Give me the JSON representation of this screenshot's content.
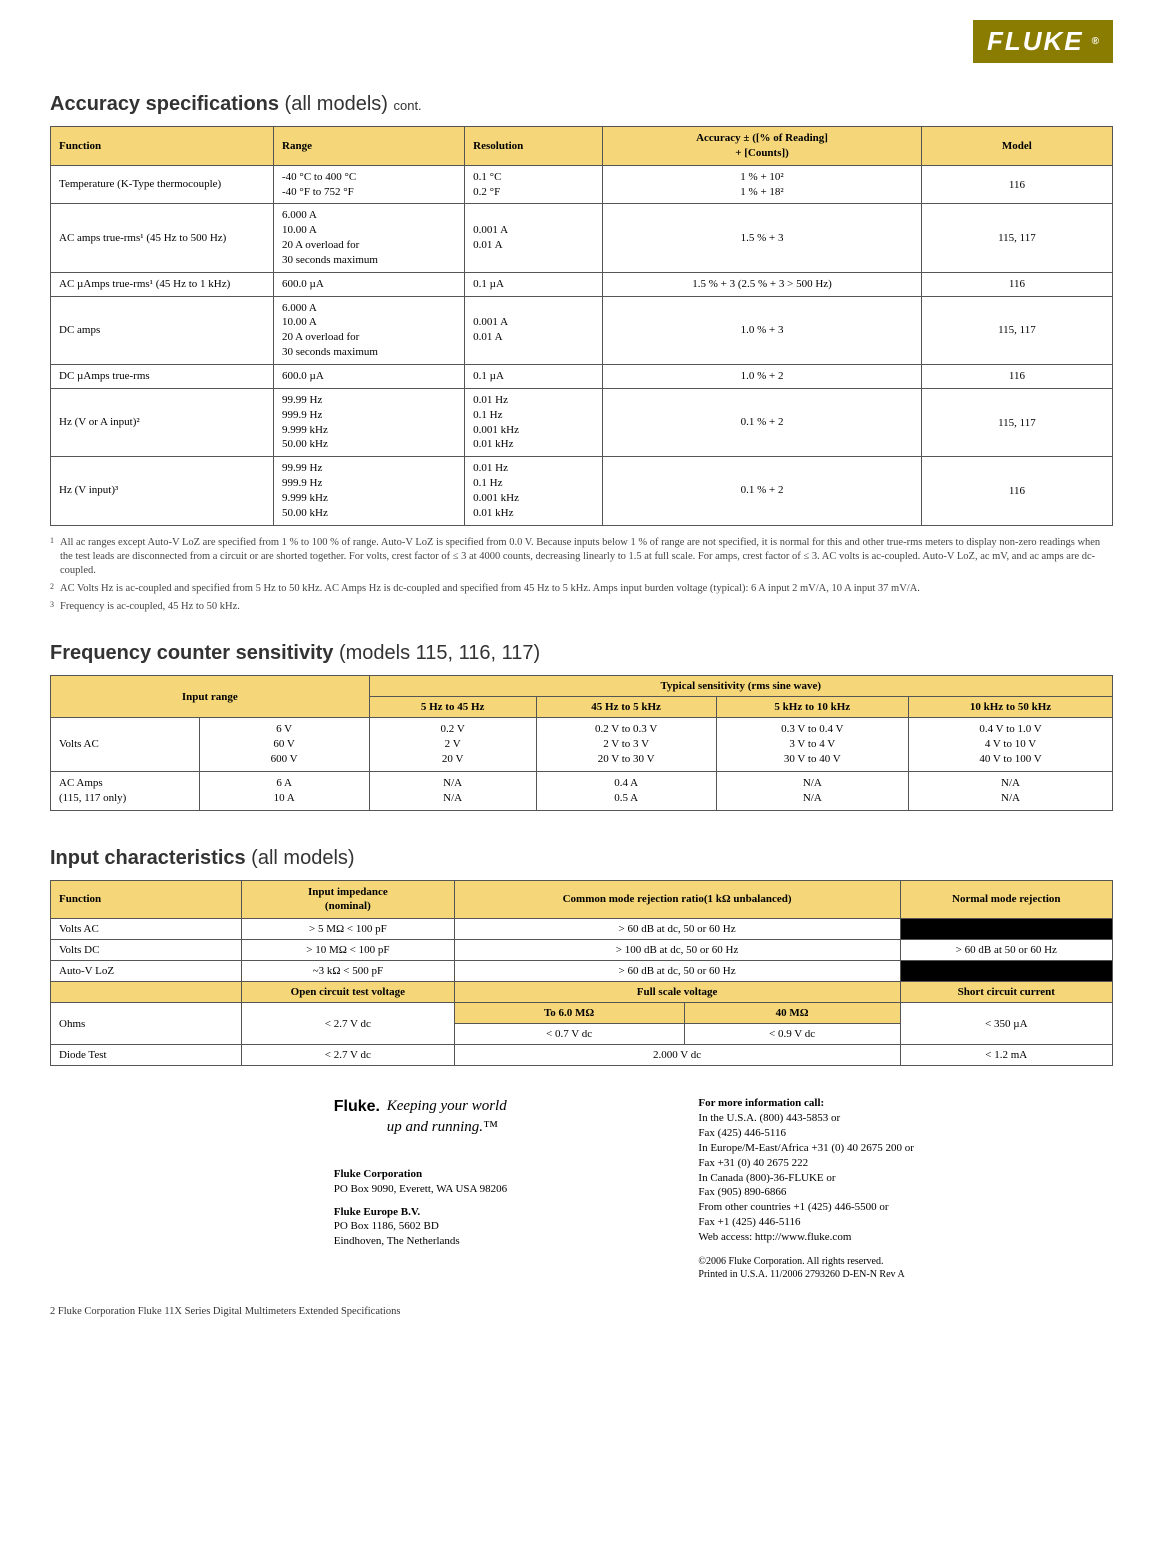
{
  "brand": {
    "name": "FLUKE",
    "reg": "®",
    "badge_bg": "#8a7c00"
  },
  "colors": {
    "header_bg": "#f5d77a",
    "border": "#555555",
    "text": "#000000"
  },
  "section1": {
    "title_strong": "Accuracy specifications",
    "title_thin": " (all models)",
    "title_cont": "cont.",
    "headers": [
      "Function",
      "Range",
      "Resolution",
      "Accuracy ± ([% of Reading]\n+ [Counts])",
      "Model"
    ],
    "rows": [
      {
        "func": "Temperature (K-Type thermocouple)",
        "range": "-40 °C to 400 °C\n-40 °F to 752 °F",
        "res": "0.1 °C\n0.2 °F",
        "acc": "1 % + 10²\n1 % + 18²",
        "model": "116"
      },
      {
        "func": "AC amps true-rms¹ (45 Hz to 500 Hz)",
        "range": "6.000 A\n10.00 A\n20 A overload for\n30 seconds maximum",
        "res": "0.001 A\n0.01 A",
        "acc": "1.5 % + 3",
        "model": "115, 117"
      },
      {
        "func": "AC µAmps true-rms¹ (45 Hz to 1 kHz)",
        "range": "600.0 µA",
        "res": "0.1 µA",
        "acc": "1.5 % + 3 (2.5 % + 3 > 500 Hz)",
        "model": "116"
      },
      {
        "func": "DC amps",
        "range": "6.000 A\n10.00 A\n20 A overload for\n30 seconds maximum",
        "res": "0.001 A\n0.01 A",
        "acc": "1.0 % + 3",
        "model": "115, 117"
      },
      {
        "func": "DC µAmps true-rms",
        "range": "600.0 µA",
        "res": "0.1 µA",
        "acc": "1.0 % + 2",
        "model": "116"
      },
      {
        "func": "Hz (V or A input)²",
        "range": "99.99 Hz\n999.9 Hz\n9.999 kHz\n50.00 kHz",
        "res": "0.01 Hz\n0.1 Hz\n0.001 kHz\n0.01 kHz",
        "acc": "0.1 % + 2",
        "model": "115, 117"
      },
      {
        "func": "Hz (V input)³",
        "range": "99.99 Hz\n999.9 Hz\n9.999 kHz\n50.00 kHz",
        "res": "0.01 Hz\n0.1 Hz\n0.001 kHz\n0.01 kHz",
        "acc": "0.1 % + 2",
        "model": "116"
      }
    ]
  },
  "footnotes": {
    "n1": "All ac ranges except Auto-V LoZ are specified from 1 % to 100 % of range. Auto-V LoZ is specified from 0.0 V. Because inputs below 1 % of range are not specified, it is normal for this and other true-rms meters to display non-zero readings when the test leads are disconnected from a circuit or are shorted together. For volts, crest factor of ≤ 3 at 4000 counts, decreasing linearly to 1.5 at full scale. For amps, crest factor of ≤ 3. AC volts is ac-coupled. Auto-V LoZ, ac mV, and ac amps are dc-coupled.",
    "n2": "AC Volts Hz is ac-coupled and specified from 5 Hz to 50 kHz. AC Amps Hz is dc-coupled and specified from 45 Hz to 5 kHz. Amps input burden voltage (typical): 6 A input 2 mV/A, 10 A input 37 mV/A.",
    "n3": "Frequency is ac-coupled, 45 Hz to 50 kHz."
  },
  "section2": {
    "title_strong": "Frequency counter sensitivity",
    "title_thin": " (models 115, 116, 117)",
    "row1_input": "Input range",
    "row1_typ": "Typical sensitivity (rms sine wave)",
    "cols": [
      "5 Hz to 45 Hz",
      "45 Hz to 5 kHz",
      "5 kHz to 10 kHz",
      "10 kHz to 50 kHz"
    ],
    "rows": [
      {
        "f": "Volts AC",
        "r": "6 V\n60 V\n600 V",
        "c": [
          "0.2 V\n2 V\n20 V",
          "0.2 V to 0.3 V\n2 V to 3 V\n20 V to 30 V",
          "0.3 V to 0.4 V\n3 V to 4 V\n30 V to 40 V",
          "0.4 V to 1.0 V\n4 V to 10 V\n40 V to 100 V"
        ]
      },
      {
        "f": "AC Amps\n(115, 117 only)",
        "r": "6 A\n10 A",
        "c": [
          "N/A\nN/A",
          "0.4 A\n0.5 A",
          "N/A\nN/A",
          "N/A\nN/A"
        ]
      }
    ]
  },
  "section3": {
    "title_strong": "Input characteristics",
    "title_thin": " (all models)",
    "h": {
      "func": "Function",
      "imp": "Input impedance\n(nominal)",
      "cmrr": "Common mode rejection ratio(1 kΩ unbalanced)",
      "nmr": "Normal mode rejection"
    },
    "r1": {
      "f": "Volts AC",
      "imp": "> 5 MΩ < 100 pF",
      "cmrr": "> 60 dB at dc, 50 or 60 Hz",
      "nmr": "black"
    },
    "r2": {
      "f": "Volts DC",
      "imp": "> 10 MΩ < 100 pF",
      "cmrr": "> 100 dB at dc, 50 or 60 Hz",
      "nmr": "> 60 dB at 50 or 60 Hz"
    },
    "r3": {
      "f": "Auto-V LoZ",
      "imp": "~3 kΩ < 500 pF",
      "cmrr": "> 60 dB at dc, 50 or 60 Hz",
      "nmr": "black"
    },
    "h2": {
      "ocv": "Open circuit test voltage",
      "fsv": "Full scale voltage",
      "scc": "Short circuit current"
    },
    "ohms": {
      "f": "Ohms",
      "ocv": "< 2.7 V dc",
      "a": "To 6.0 MΩ",
      "b": "40 MΩ",
      "c": "< 0.7 V dc",
      "d": "< 0.9 V dc",
      "scc": "< 350 µA"
    },
    "diode": {
      "f": "Diode Test",
      "ocv": "< 2.7 V dc",
      "fsv": "2.000 V dc",
      "scc": "< 1.2 mA"
    }
  },
  "footer": {
    "brand": "Fluke.",
    "tagline": "Keeping your world\nup and running.™",
    "corp_name": "Fluke Corporation",
    "corp_addr": "PO Box 9090, Everett, WA USA 98206",
    "eu_name": "Fluke Europe B.V.",
    "eu_addr": "PO Box 1186, 5602 BD\nEindhoven, The Netherlands",
    "info_head": "For more information call:",
    "info_body": "In the U.S.A. (800) 443-5853 or\nFax (425) 446-5116\nIn Europe/M-East/Africa +31 (0) 40 2675 200 or\nFax +31 (0) 40 2675 222\nIn Canada (800)-36-FLUKE or\nFax (905) 890-6866\nFrom other countries +1 (425) 446-5500 or\nFax +1 (425) 446-5116\nWeb access: http://www.fluke.com",
    "copyright": "©2006 Fluke Corporation. All rights reserved.\nPrinted in U.S.A. 11/2006 2793260 D-EN-N Rev A"
  },
  "pagefoot": "2    Fluke Corporation     Fluke 11X Series Digital Multimeters Extended Specifications"
}
